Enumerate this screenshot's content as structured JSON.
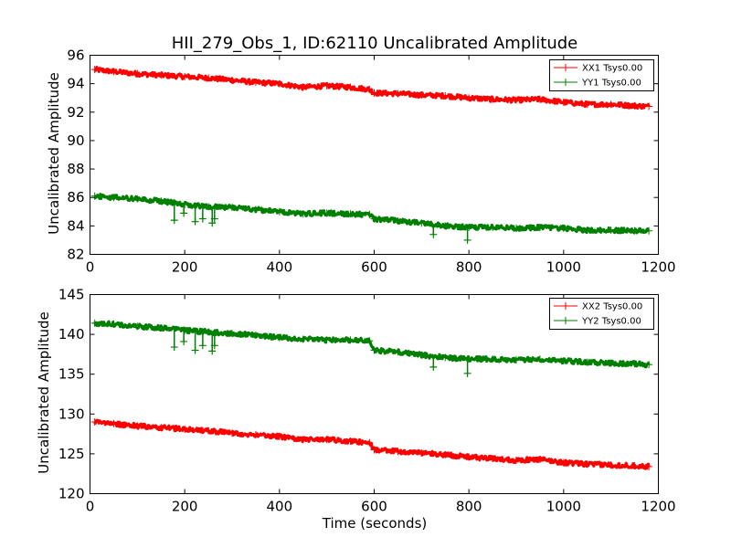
{
  "chart_data": [
    {
      "type": "line",
      "title": "HII_279_Obs_1, ID:62110 Uncalibrated Amplitude",
      "xlabel": "",
      "ylabel": "Uncalibrated Amplitude",
      "xlim": [
        0,
        1200
      ],
      "ylim": [
        82,
        96
      ],
      "xticks": [
        "0",
        "200",
        "400",
        "600",
        "800",
        "1000",
        "1200"
      ],
      "yticks": [
        "82",
        "84",
        "86",
        "88",
        "90",
        "92",
        "94",
        "96"
      ],
      "grid": false,
      "legend_position": "top-right",
      "series": [
        {
          "name": "XX1 Tsys0.00",
          "color": "#ff0000",
          "marker": "+",
          "x": [
            10,
            50,
            100,
            150,
            200,
            250,
            300,
            350,
            400,
            450,
            500,
            550,
            590,
            600,
            650,
            700,
            750,
            800,
            850,
            900,
            950,
            1000,
            1050,
            1100,
            1150,
            1180
          ],
          "y": [
            95.0,
            94.85,
            94.7,
            94.6,
            94.5,
            94.4,
            94.25,
            94.1,
            94.0,
            93.75,
            93.85,
            93.75,
            93.6,
            93.35,
            93.3,
            93.2,
            93.15,
            93.0,
            92.9,
            92.85,
            92.9,
            92.7,
            92.55,
            92.55,
            92.45,
            92.4
          ],
          "spikes": []
        },
        {
          "name": "YY1 Tsys0.00",
          "color": "#008000",
          "marker": "+",
          "x": [
            10,
            50,
            100,
            150,
            200,
            250,
            300,
            350,
            400,
            450,
            500,
            550,
            590,
            600,
            650,
            700,
            750,
            800,
            850,
            900,
            950,
            1000,
            1050,
            1100,
            1150,
            1180
          ],
          "y": [
            86.1,
            86.0,
            85.9,
            85.75,
            85.5,
            85.35,
            85.3,
            85.15,
            85.0,
            84.85,
            84.9,
            84.85,
            84.8,
            84.5,
            84.35,
            84.2,
            84.0,
            83.9,
            83.9,
            83.85,
            83.9,
            83.85,
            83.7,
            83.7,
            83.65,
            83.65
          ],
          "spikes": [
            {
              "x": 178,
              "y": 84.4
            },
            {
              "x": 198,
              "y": 84.9
            },
            {
              "x": 222,
              "y": 84.3
            },
            {
              "x": 238,
              "y": 84.5
            },
            {
              "x": 258,
              "y": 84.2
            },
            {
              "x": 263,
              "y": 84.5
            },
            {
              "x": 725,
              "y": 83.4
            },
            {
              "x": 797,
              "y": 83.0
            }
          ]
        }
      ]
    },
    {
      "type": "line",
      "title": "",
      "xlabel": "Time (seconds)",
      "ylabel": "Uncalibrated Amplitude",
      "xlim": [
        0,
        1200
      ],
      "ylim": [
        120,
        145
      ],
      "xticks": [
        "0",
        "200",
        "400",
        "600",
        "800",
        "1000",
        "1200"
      ],
      "yticks": [
        "120",
        "125",
        "130",
        "135",
        "140",
        "145"
      ],
      "grid": false,
      "legend_position": "top-right",
      "series": [
        {
          "name": "XX2 Tsys0.00",
          "color": "#ff0000",
          "marker": "+",
          "x": [
            10,
            50,
            100,
            150,
            200,
            250,
            300,
            350,
            400,
            450,
            500,
            550,
            590,
            600,
            650,
            700,
            750,
            800,
            850,
            900,
            950,
            1000,
            1050,
            1100,
            1150,
            1180
          ],
          "y": [
            129.0,
            128.8,
            128.5,
            128.3,
            128.1,
            127.9,
            127.6,
            127.4,
            127.2,
            126.8,
            126.8,
            126.6,
            126.4,
            125.5,
            125.3,
            125.1,
            124.9,
            124.6,
            124.4,
            124.2,
            124.3,
            123.9,
            123.7,
            123.6,
            123.5,
            123.4
          ],
          "spikes": []
        },
        {
          "name": "YY2 Tsys0.00",
          "color": "#008000",
          "marker": "+",
          "x": [
            10,
            50,
            100,
            150,
            200,
            250,
            300,
            350,
            400,
            450,
            500,
            550,
            590,
            600,
            650,
            700,
            750,
            800,
            850,
            900,
            950,
            1000,
            1050,
            1100,
            1150,
            1180
          ],
          "y": [
            141.4,
            141.3,
            141.0,
            140.8,
            140.5,
            140.3,
            140.1,
            139.9,
            139.6,
            139.4,
            139.3,
            139.3,
            139.2,
            138.0,
            137.8,
            137.4,
            137.1,
            136.9,
            136.9,
            136.8,
            136.9,
            136.7,
            136.5,
            136.4,
            136.3,
            136.2
          ],
          "spikes": [
            {
              "x": 178,
              "y": 138.4
            },
            {
              "x": 198,
              "y": 139.1
            },
            {
              "x": 222,
              "y": 138.0
            },
            {
              "x": 238,
              "y": 138.6
            },
            {
              "x": 258,
              "y": 137.9
            },
            {
              "x": 263,
              "y": 138.6
            },
            {
              "x": 725,
              "y": 135.9
            },
            {
              "x": 797,
              "y": 135.1
            }
          ]
        }
      ]
    }
  ]
}
